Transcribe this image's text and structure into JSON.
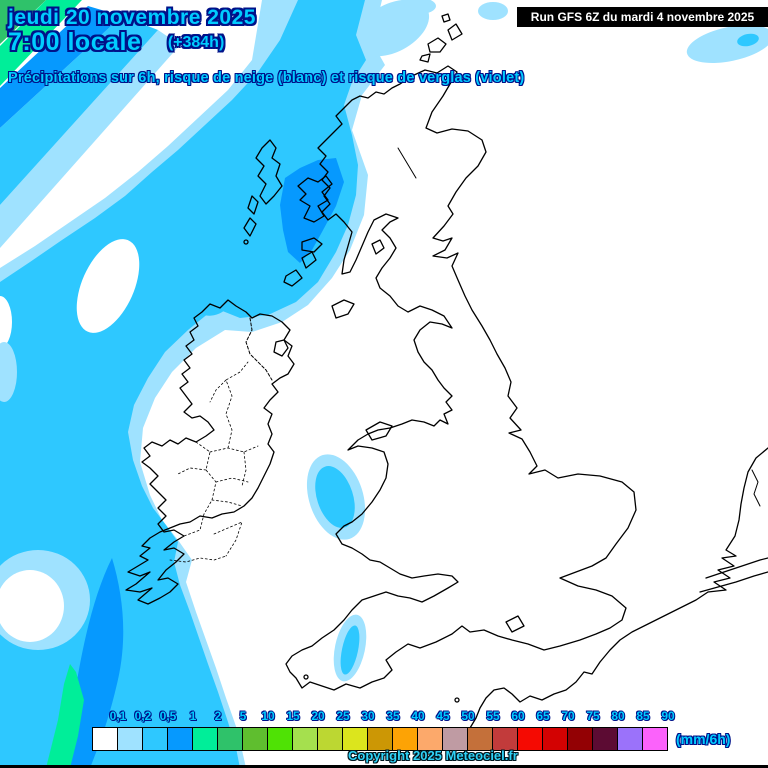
{
  "header": {
    "date_line": "jeudi 20 novembre 2025",
    "time_line": "7:00 locale",
    "offset": "(+384h)",
    "subtitle": "Précipitations sur 6h, risque de neige (blanc) et risque de verglas (violet)",
    "run_info": "Run GFS 6Z du mardi 4 novembre 2025",
    "text_color": "#00CCFF",
    "outline_color": "#001289"
  },
  "legend": {
    "unit": "(mm/6h)",
    "labels": [
      "0,1",
      "0,2",
      "0,5",
      "1",
      "2",
      "5",
      "10",
      "15",
      "20",
      "25",
      "30",
      "35",
      "40",
      "45",
      "50",
      "55",
      "60",
      "65",
      "70",
      "75",
      "80",
      "85",
      "90"
    ],
    "colors": [
      "#FFFFFF",
      "#9FE2FF",
      "#2EC8FF",
      "#0699FE",
      "#00EE99",
      "#2FC26A",
      "#5FBE2F",
      "#4FE205",
      "#A5E04E",
      "#BCD732",
      "#DCE51D",
      "#CC9705",
      "#FDA305",
      "#FCA96B",
      "#BF9BA3",
      "#C4703A",
      "#C23B3B",
      "#F50A02",
      "#D30202",
      "#930104",
      "#5C0B33",
      "#9B72FA",
      "#FB62FB"
    ]
  },
  "map": {
    "region": "British Isles and nearby continent, GFS precipitation chart",
    "palette": {
      "sea": "#FFFFFF",
      "rain_02": "#9FE2FF",
      "rain_05": "#2EC8FF",
      "rain_1": "#0699FE",
      "rain_2": "#00EE99",
      "rain_5": "#2FC26A",
      "coast": "#000000"
    }
  },
  "footer": {
    "copyright": "Copyright 2025 Meteociel.fr"
  }
}
